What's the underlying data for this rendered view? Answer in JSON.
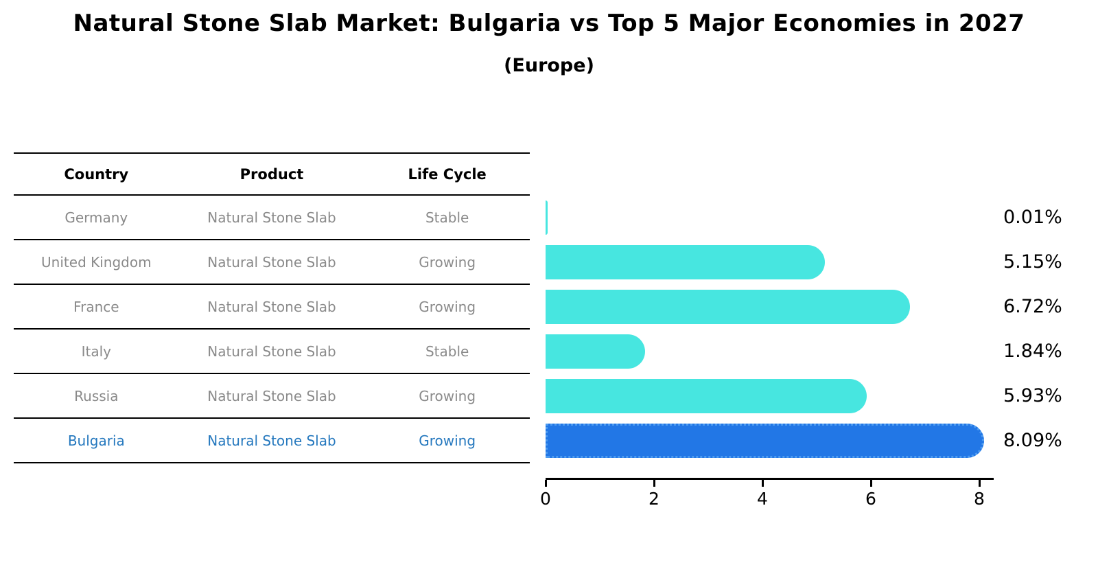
{
  "title": "Natural Stone Slab Market: Bulgaria vs Top 5 Major Economies in 2027",
  "subtitle": "(Europe)",
  "table": {
    "columns": [
      "Country",
      "Product",
      "Life Cycle"
    ]
  },
  "colors": {
    "bar": "#47e6e0",
    "highlight_bar": "#2277e6",
    "highlight_edge": "#4e9cf0",
    "highlight_text": "#2578be",
    "row_text": "#8a8a8a",
    "axis": "#000000"
  },
  "chart_data": {
    "type": "bar",
    "orientation": "horizontal",
    "title": "Natural Stone Slab Market: Bulgaria vs Top 5 Major Economies in 2027",
    "subtitle": "(Europe)",
    "xlabel": "",
    "ylabel": "",
    "unit": "%",
    "xlim": [
      0,
      8.6
    ],
    "x_ticks": [
      0,
      2,
      4,
      6,
      8
    ],
    "grid": false,
    "legend": "none",
    "highlighted_category": "Bulgaria",
    "categories": [
      "Germany",
      "United Kingdom",
      "France",
      "Italy",
      "Russia",
      "Bulgaria"
    ],
    "values": [
      0.01,
      5.15,
      6.72,
      1.84,
      5.93,
      8.09
    ],
    "rows": [
      {
        "country": "Germany",
        "product": "Natural Stone Slab",
        "life_cycle": "Stable",
        "value": 0.01,
        "label": "0.01%",
        "highlight": false
      },
      {
        "country": "United Kingdom",
        "product": "Natural Stone Slab",
        "life_cycle": "Growing",
        "value": 5.15,
        "label": "5.15%",
        "highlight": false
      },
      {
        "country": "France",
        "product": "Natural Stone Slab",
        "life_cycle": "Growing",
        "value": 6.72,
        "label": "6.72%",
        "highlight": false
      },
      {
        "country": "Italy",
        "product": "Natural Stone Slab",
        "life_cycle": "Stable",
        "value": 1.84,
        "label": "1.84%",
        "highlight": false
      },
      {
        "country": "Russia",
        "product": "Natural Stone Slab",
        "life_cycle": "Growing",
        "value": 5.93,
        "label": "5.93%",
        "highlight": false
      },
      {
        "country": "Bulgaria",
        "product": "Natural Stone Slab",
        "life_cycle": "Growing",
        "value": 8.09,
        "label": "8.09%",
        "highlight": true
      }
    ]
  }
}
